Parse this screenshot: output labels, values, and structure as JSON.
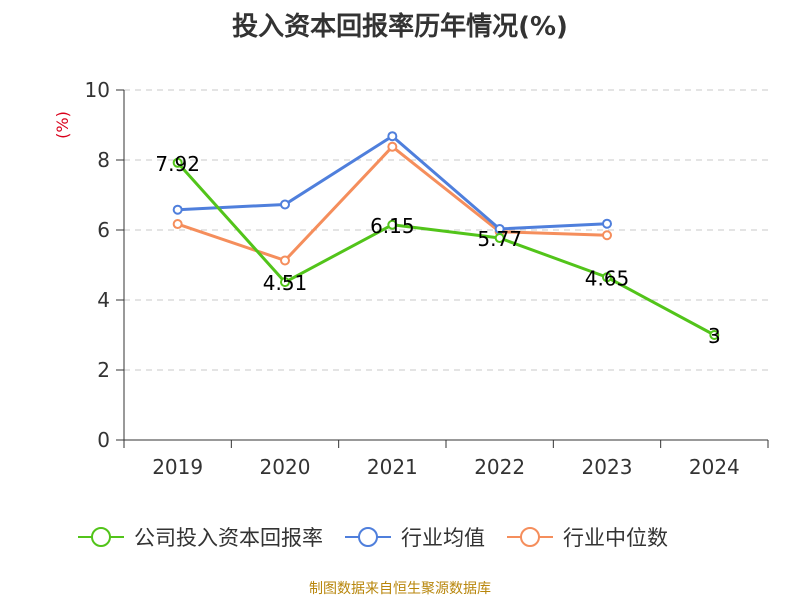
{
  "chart_data": {
    "type": "line",
    "title": "投入资本回报率历年情况(%)",
    "ylabel": "(%)",
    "xlabel": "",
    "categories": [
      "2019",
      "2020",
      "2021",
      "2022",
      "2023",
      "2024"
    ],
    "ylim": [
      0,
      10
    ],
    "yticks": [
      0,
      2,
      4,
      6,
      8,
      10
    ],
    "grid": true,
    "legend_position": "bottom",
    "series": [
      {
        "name": "公司投入资本回报率",
        "color": "#52c41a",
        "values": [
          7.92,
          4.51,
          6.15,
          5.77,
          4.65,
          3
        ],
        "labels": [
          "7.92",
          "4.51",
          "6.15",
          "5.77",
          "4.65",
          "3"
        ]
      },
      {
        "name": "行业均值",
        "color": "#4f7fdc",
        "values": [
          6.58,
          6.73,
          8.68,
          6.03,
          6.18,
          null
        ]
      },
      {
        "name": "行业中位数",
        "color": "#f58e5c",
        "values": [
          6.17,
          5.13,
          8.38,
          5.95,
          5.85,
          null
        ]
      }
    ]
  },
  "source": "制图数据来自恒生聚源数据库"
}
